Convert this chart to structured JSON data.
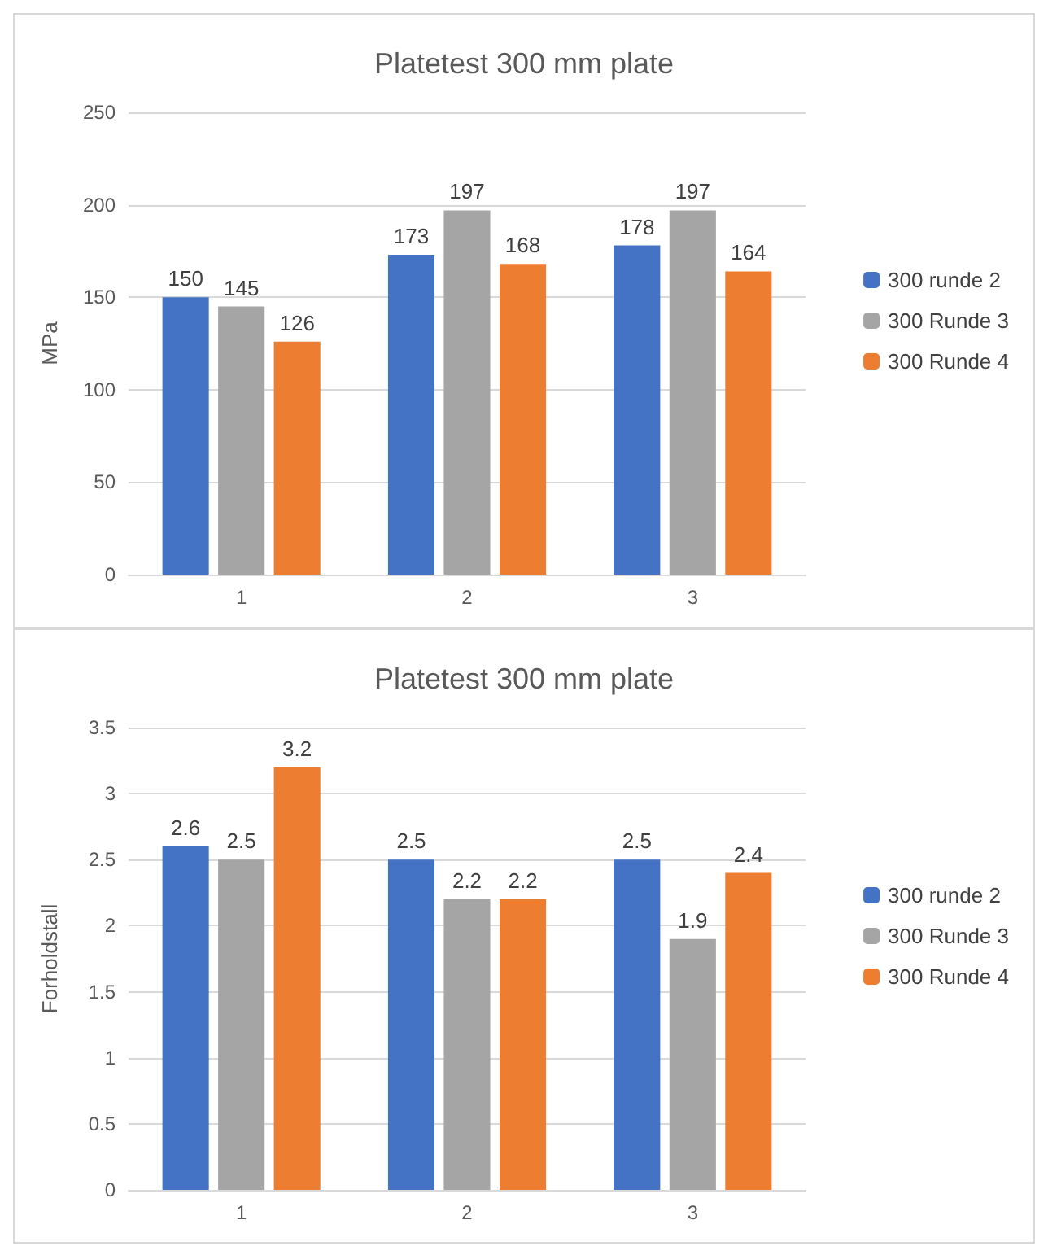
{
  "chart_data": [
    {
      "type": "bar",
      "title": "Platetest 300 mm plate",
      "ylabel": "MPa",
      "categories": [
        "1",
        "2",
        "3"
      ],
      "series": [
        {
          "name": "300 runde 2",
          "color": "#4472c4",
          "values": [
            150,
            173,
            178
          ]
        },
        {
          "name": "300 Runde 3",
          "color": "#a5a5a5",
          "values": [
            145,
            197,
            197
          ]
        },
        {
          "name": "300 Runde 4",
          "color": "#ed7d31",
          "values": [
            126,
            168,
            164
          ]
        }
      ],
      "ylim": [
        0,
        250
      ],
      "yticks": [
        0,
        50,
        100,
        150,
        200,
        250
      ],
      "grid": "y",
      "legend": "right",
      "data_labels": true
    },
    {
      "type": "bar",
      "title": "Platetest 300 mm plate",
      "ylabel": "Forholdstall",
      "categories": [
        "1",
        "2",
        "3"
      ],
      "series": [
        {
          "name": "300 runde 2",
          "color": "#4472c4",
          "values": [
            2.6,
            2.5,
            2.5
          ]
        },
        {
          "name": "300 Runde 3",
          "color": "#a5a5a5",
          "values": [
            2.5,
            2.2,
            1.9
          ]
        },
        {
          "name": "300 Runde 4",
          "color": "#ed7d31",
          "values": [
            3.2,
            2.2,
            2.4
          ]
        }
      ],
      "ylim": [
        0,
        3.5
      ],
      "yticks": [
        0,
        0.5,
        1,
        1.5,
        2,
        2.5,
        3,
        3.5
      ],
      "grid": "y",
      "legend": "right",
      "data_labels": true
    }
  ]
}
